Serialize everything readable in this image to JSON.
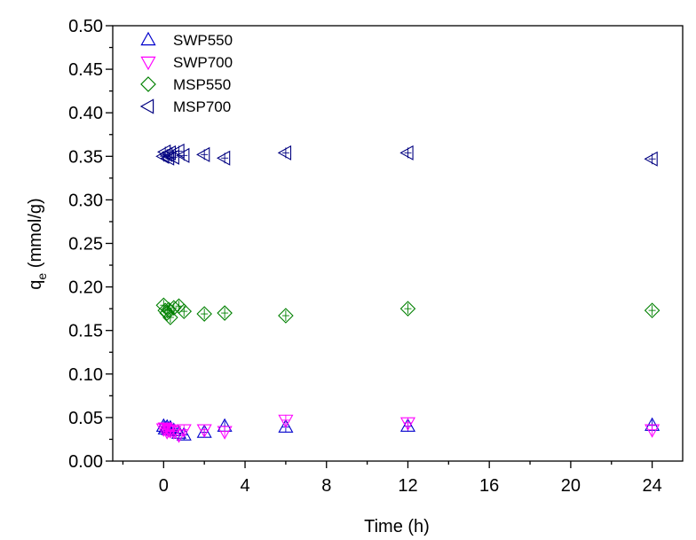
{
  "chart_data": {
    "type": "scatter",
    "xlabel": "Time (h)",
    "ylabel_main": "q",
    "ylabel_sub": "e",
    "ylabel_unit": " (mmol/g)",
    "xlim": [
      -2.5,
      25.5
    ],
    "ylim": [
      0,
      0.5
    ],
    "xticks": [
      0,
      4,
      8,
      12,
      16,
      20,
      24
    ],
    "xtick_labels": [
      "0",
      "4",
      "8",
      "12",
      "16",
      "20",
      "24"
    ],
    "yticks": [
      0,
      0.05,
      0.1,
      0.15,
      0.2,
      0.25,
      0.3,
      0.35,
      0.4,
      0.45,
      0.5
    ],
    "ytick_labels": [
      "0.00",
      "0.05",
      "0.10",
      "0.15",
      "0.20",
      "0.25",
      "0.30",
      "0.35",
      "0.40",
      "0.45",
      "0.50"
    ],
    "grid": false,
    "legend_position": "top-left",
    "series": [
      {
        "name": "SWP550",
        "marker": "triangle-up",
        "color": "#0000cc",
        "x": [
          0,
          0.08,
          0.17,
          0.25,
          0.33,
          0.5,
          0.75,
          1,
          2,
          3,
          6,
          12,
          24
        ],
        "y": [
          0.04,
          0.037,
          0.039,
          0.036,
          0.038,
          0.035,
          0.032,
          0.03,
          0.033,
          0.04,
          0.039,
          0.04,
          0.041
        ]
      },
      {
        "name": "SWP700",
        "marker": "triangle-down",
        "color": "#ff00ff",
        "x": [
          0,
          0.08,
          0.17,
          0.25,
          0.33,
          0.5,
          0.75,
          1,
          2,
          3,
          6,
          12,
          24
        ],
        "y": [
          0.037,
          0.038,
          0.034,
          0.036,
          0.035,
          0.034,
          0.03,
          0.036,
          0.036,
          0.034,
          0.047,
          0.044,
          0.036
        ]
      },
      {
        "name": "MSP550",
        "marker": "diamond",
        "color": "#008000",
        "x": [
          0,
          0.08,
          0.17,
          0.25,
          0.33,
          0.5,
          0.75,
          1,
          2,
          3,
          6,
          12,
          24
        ],
        "y": [
          0.179,
          0.173,
          0.17,
          0.174,
          0.165,
          0.176,
          0.178,
          0.172,
          0.169,
          0.17,
          0.167,
          0.175,
          0.173
        ]
      },
      {
        "name": "MSP700",
        "marker": "triangle-left",
        "color": "#000080",
        "x": [
          0,
          0.08,
          0.17,
          0.25,
          0.33,
          0.5,
          0.75,
          1,
          2,
          3,
          6,
          12,
          24
        ],
        "y": [
          0.35,
          0.355,
          0.352,
          0.348,
          0.354,
          0.349,
          0.356,
          0.351,
          0.352,
          0.348,
          0.354,
          0.354,
          0.347
        ]
      }
    ]
  }
}
